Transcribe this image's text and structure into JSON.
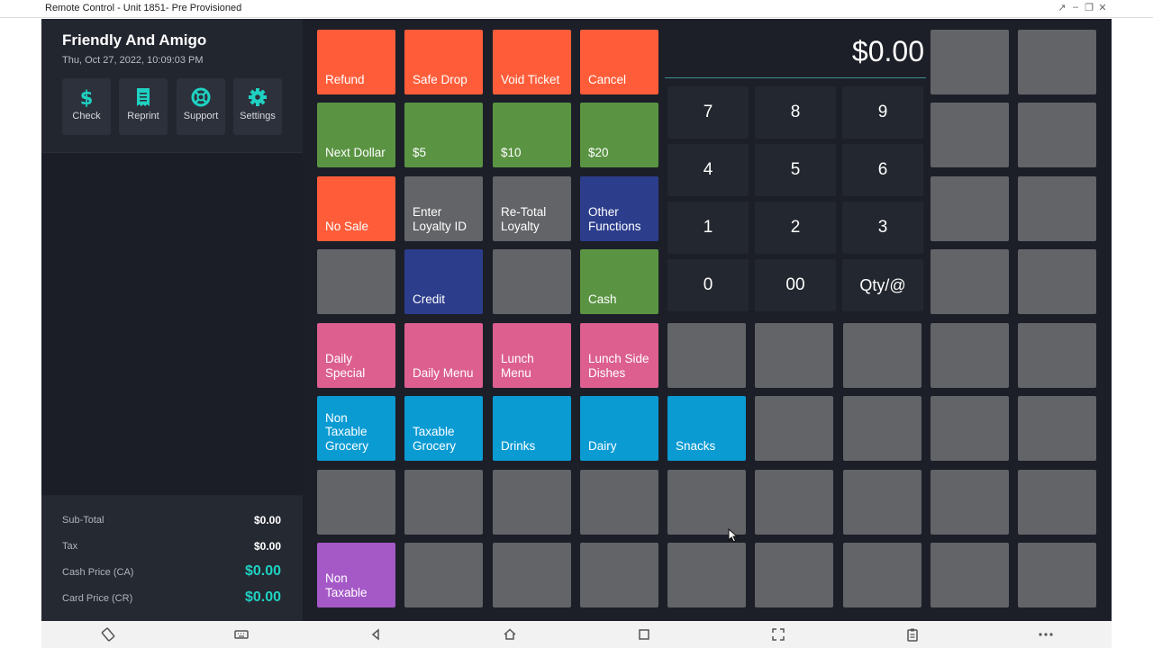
{
  "window": {
    "title": "Remote Control - Unit 1851- Pre Provisioned",
    "controls": [
      "resize-icon",
      "minimize-icon",
      "restore-icon",
      "close-icon"
    ]
  },
  "store": {
    "name": "Friendly And Amigo",
    "datetime": "Thu, Oct 27, 2022, 10:09:03 PM"
  },
  "quick_actions": [
    {
      "label": "Check",
      "icon": "dollar-icon"
    },
    {
      "label": "Reprint",
      "icon": "receipt-icon"
    },
    {
      "label": "Support",
      "icon": "lifebuoy-icon"
    },
    {
      "label": "Settings",
      "icon": "gear-icon"
    }
  ],
  "totals": {
    "subtotal_label": "Sub-Total",
    "subtotal_value": "$0.00",
    "tax_label": "Tax",
    "tax_value": "$0.00",
    "cash_label": "Cash Price (CA)",
    "cash_value": "$0.00",
    "card_label": "Card Price (CR)",
    "card_value": "$0.00"
  },
  "display": {
    "amount": "$0.00"
  },
  "keypad": [
    "7",
    "8",
    "9",
    "4",
    "5",
    "6",
    "1",
    "2",
    "3",
    "0",
    "00",
    "Qty/@"
  ],
  "colors": {
    "orange": "#ff5d3a",
    "green": "#5a9443",
    "gray": "#636468",
    "blue": "#2c3d8c",
    "pink": "#dc5f8f",
    "cyan": "#0a9bd3",
    "purple": "#a559c7",
    "accent_teal": "#1fd1c2"
  },
  "grid": {
    "rows": [
      [
        {
          "label": "Refund",
          "color": "orange"
        },
        {
          "label": "Safe Drop",
          "color": "orange"
        },
        {
          "label": "Void Ticket",
          "color": "orange"
        },
        {
          "label": "Cancel",
          "color": "orange"
        }
      ],
      [
        {
          "label": "Next Dollar",
          "color": "green"
        },
        {
          "label": "$5",
          "color": "green"
        },
        {
          "label": "$10",
          "color": "green"
        },
        {
          "label": "$20",
          "color": "green"
        }
      ],
      [
        {
          "label": "No Sale",
          "color": "orange"
        },
        {
          "label": "Enter\nLoyalty ID",
          "color": "gray"
        },
        {
          "label": "Re-Total\nLoyalty",
          "color": "gray"
        },
        {
          "label": "Other\nFunctions",
          "color": "blue"
        }
      ],
      [
        {
          "label": "",
          "color": "gray"
        },
        {
          "label": "Credit",
          "color": "blue"
        },
        {
          "label": "",
          "color": "gray"
        },
        {
          "label": "Cash",
          "color": "green"
        }
      ],
      [
        {
          "label": "Daily\nSpecial",
          "color": "pink"
        },
        {
          "label": "Daily Menu",
          "color": "pink"
        },
        {
          "label": "Lunch\nMenu",
          "color": "pink"
        },
        {
          "label": "Lunch Side\nDishes",
          "color": "pink"
        },
        {
          "label": "",
          "color": "gray"
        },
        {
          "label": "",
          "color": "gray"
        },
        {
          "label": "",
          "color": "gray"
        },
        {
          "label": "",
          "color": "gray"
        },
        {
          "label": "",
          "color": "gray"
        }
      ],
      [
        {
          "label": "Non\nTaxable\nGrocery",
          "color": "cyan"
        },
        {
          "label": "Taxable\nGrocery",
          "color": "cyan"
        },
        {
          "label": "Drinks",
          "color": "cyan"
        },
        {
          "label": "Dairy",
          "color": "cyan"
        },
        {
          "label": "Snacks",
          "color": "cyan"
        },
        {
          "label": "",
          "color": "gray"
        },
        {
          "label": "",
          "color": "gray"
        },
        {
          "label": "",
          "color": "gray"
        },
        {
          "label": "",
          "color": "gray"
        }
      ],
      [
        {
          "label": "",
          "color": "gray"
        },
        {
          "label": "",
          "color": "gray"
        },
        {
          "label": "",
          "color": "gray"
        },
        {
          "label": "",
          "color": "gray"
        },
        {
          "label": "",
          "color": "gray"
        },
        {
          "label": "",
          "color": "gray"
        },
        {
          "label": "",
          "color": "gray"
        },
        {
          "label": "",
          "color": "gray"
        },
        {
          "label": "",
          "color": "gray"
        }
      ],
      [
        {
          "label": "Non\nTaxable",
          "color": "purple"
        },
        {
          "label": "",
          "color": "gray"
        },
        {
          "label": "",
          "color": "gray"
        },
        {
          "label": "",
          "color": "gray"
        },
        {
          "label": "",
          "color": "gray"
        },
        {
          "label": "",
          "color": "gray"
        },
        {
          "label": "",
          "color": "gray"
        },
        {
          "label": "",
          "color": "gray"
        },
        {
          "label": "",
          "color": "gray"
        }
      ]
    ],
    "side_column_tiles": [
      {
        "label": "",
        "color": "gray"
      },
      {
        "label": "",
        "color": "gray"
      },
      {
        "label": "",
        "color": "gray"
      },
      {
        "label": "",
        "color": "gray"
      },
      {
        "label": "",
        "color": "gray"
      },
      {
        "label": "",
        "color": "gray"
      },
      {
        "label": "",
        "color": "gray"
      },
      {
        "label": "",
        "color": "gray"
      }
    ]
  },
  "navbar": [
    "rotate-icon",
    "keyboard-icon",
    "back-icon",
    "home-icon",
    "recents-icon",
    "fullscreen-icon",
    "clipboard-icon",
    "more-icon"
  ]
}
